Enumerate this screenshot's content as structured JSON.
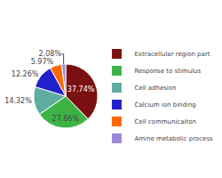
{
  "chart_data": {
    "type": "pie",
    "categories": [
      "Extracellular region part",
      "Response to stimulus",
      "Cell adhesion",
      "Calcium ion binding",
      "Cell communicaiton",
      "Amine metabolic process"
    ],
    "values": [
      37.74,
      27.66,
      14.32,
      12.26,
      5.97,
      2.08
    ],
    "value_labels": [
      "37.74%",
      "27.66%",
      "14.32%",
      "12.26%",
      "5.97%",
      "2.08%"
    ],
    "colors": [
      "#7B1010",
      "#3CB344",
      "#5FADA0",
      "#2020CC",
      "#FF6600",
      "#9B89D4"
    ],
    "data_labels": true,
    "legend": "right"
  }
}
